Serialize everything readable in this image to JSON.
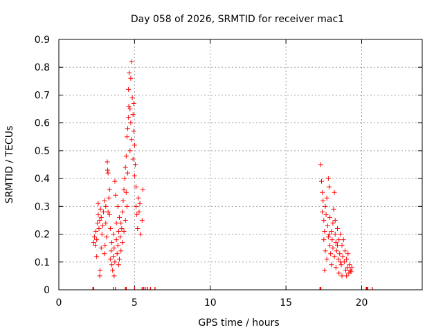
{
  "chart_data": {
    "type": "scatter",
    "title": "Day 058 of 2026, SRMTID for receiver mac1",
    "xlabel": "GPS time / hours",
    "ylabel": "SRMTID / TECUs",
    "xlim": [
      0,
      24
    ],
    "ylim": [
      0,
      0.9
    ],
    "xticks": [
      "0",
      "5",
      "10",
      "15",
      "20"
    ],
    "yticks": [
      "0",
      "0.1",
      "0.2",
      "0.3",
      "0.4",
      "0.5",
      "0.6",
      "0.7",
      "0.8",
      "0.9"
    ],
    "grid": true,
    "marker": "+",
    "color": "#ff0000",
    "series": [
      {
        "name": "SRMTID",
        "points": [
          [
            2.3,
            0.17
          ],
          [
            2.35,
            0.19
          ],
          [
            2.4,
            0.16
          ],
          [
            2.45,
            0.21
          ],
          [
            2.5,
            0.18
          ],
          [
            2.55,
            0.24
          ],
          [
            2.6,
            0.27
          ],
          [
            2.6,
            0.31
          ],
          [
            2.65,
            0.22
          ],
          [
            2.7,
            0.25
          ],
          [
            2.7,
            0.05
          ],
          [
            2.72,
            0.07
          ],
          [
            2.75,
            0.29
          ],
          [
            2.8,
            0.26
          ],
          [
            2.85,
            0.2
          ],
          [
            2.9,
            0.23
          ],
          [
            2.95,
            0.28
          ],
          [
            3.0,
            0.32
          ],
          [
            3.0,
            0.13
          ],
          [
            3.05,
            0.16
          ],
          [
            3.1,
            0.24
          ],
          [
            3.1,
            0.3
          ],
          [
            3.15,
            0.19
          ],
          [
            3.2,
            0.46
          ],
          [
            3.22,
            0.43
          ],
          [
            3.25,
            0.42
          ],
          [
            3.3,
            0.33
          ],
          [
            3.35,
            0.36
          ],
          [
            3.35,
            0.27
          ],
          [
            3.4,
            0.22
          ],
          [
            3.4,
            0.11
          ],
          [
            3.45,
            0.14
          ],
          [
            3.5,
            0.09
          ],
          [
            3.5,
            0.17
          ],
          [
            3.55,
            0.07
          ],
          [
            3.6,
            0.12
          ],
          [
            3.6,
            0.2
          ],
          [
            3.65,
            0.15
          ],
          [
            3.7,
            0.1
          ],
          [
            3.7,
            0.39
          ],
          [
            3.75,
            0.34
          ],
          [
            3.8,
            0.18
          ],
          [
            3.8,
            0.24
          ],
          [
            3.85,
            0.13
          ],
          [
            3.9,
            0.16
          ],
          [
            3.9,
            0.3
          ],
          [
            3.95,
            0.21
          ],
          [
            4.0,
            0.26
          ],
          [
            4.0,
            0.11
          ],
          [
            4.05,
            0.19
          ],
          [
            4.1,
            0.24
          ],
          [
            4.1,
            0.14
          ],
          [
            4.15,
            0.22
          ],
          [
            4.2,
            0.28
          ],
          [
            4.2,
            0.17
          ],
          [
            4.25,
            0.32
          ],
          [
            4.3,
            0.36
          ],
          [
            4.3,
            0.21
          ],
          [
            4.35,
            0.4
          ],
          [
            4.4,
            0.44
          ],
          [
            4.4,
            0.25
          ],
          [
            4.45,
            0.48
          ],
          [
            4.5,
            0.55
          ],
          [
            4.5,
            0.3
          ],
          [
            4.55,
            0.58
          ],
          [
            4.6,
            0.62
          ],
          [
            4.6,
            0.72
          ],
          [
            4.62,
            0.66
          ],
          [
            4.65,
            0.78
          ],
          [
            4.7,
            0.65
          ],
          [
            4.7,
            0.5
          ],
          [
            4.75,
            0.6
          ],
          [
            4.8,
            0.82
          ],
          [
            4.8,
            0.54
          ],
          [
            4.85,
            0.69
          ],
          [
            4.9,
            0.47
          ],
          [
            4.9,
            0.63
          ],
          [
            4.95,
            0.57
          ],
          [
            5.0,
            0.41
          ],
          [
            5.0,
            0.52
          ],
          [
            5.05,
            0.45
          ],
          [
            5.1,
            0.37
          ],
          [
            5.1,
            0.3
          ],
          [
            5.15,
            0.27
          ],
          [
            5.2,
            0.22
          ],
          [
            5.25,
            0.33
          ],
          [
            5.3,
            0.28
          ],
          [
            5.35,
            0.31
          ],
          [
            5.4,
            0.2
          ],
          [
            5.5,
            0.25
          ],
          [
            5.55,
            0.36
          ],
          [
            2.5,
            0.12
          ],
          [
            2.8,
            0.15
          ],
          [
            3.25,
            0.28
          ],
          [
            3.65,
            0.05
          ],
          [
            4.45,
            0.35
          ],
          [
            4.95,
            0.67
          ],
          [
            4.75,
            0.76
          ],
          [
            4.55,
            0.42
          ],
          [
            3.95,
            0.09
          ],
          [
            17.3,
            0.45
          ],
          [
            17.35,
            0.39
          ],
          [
            17.4,
            0.35
          ],
          [
            17.4,
            0.28
          ],
          [
            17.45,
            0.32
          ],
          [
            17.5,
            0.25
          ],
          [
            17.5,
            0.18
          ],
          [
            17.55,
            0.21
          ],
          [
            17.6,
            0.3
          ],
          [
            17.6,
            0.14
          ],
          [
            17.65,
            0.27
          ],
          [
            17.7,
            0.33
          ],
          [
            17.7,
            0.11
          ],
          [
            17.75,
            0.23
          ],
          [
            17.8,
            0.19
          ],
          [
            17.8,
            0.4
          ],
          [
            17.85,
            0.37
          ],
          [
            17.9,
            0.16
          ],
          [
            17.9,
            0.26
          ],
          [
            17.95,
            0.13
          ],
          [
            18.0,
            0.21
          ],
          [
            18.0,
            0.09
          ],
          [
            18.05,
            0.18
          ],
          [
            18.1,
            0.24
          ],
          [
            18.1,
            0.15
          ],
          [
            18.15,
            0.29
          ],
          [
            18.2,
            0.12
          ],
          [
            18.2,
            0.35
          ],
          [
            18.25,
            0.2
          ],
          [
            18.3,
            0.17
          ],
          [
            18.3,
            0.08
          ],
          [
            18.35,
            0.14
          ],
          [
            18.4,
            0.22
          ],
          [
            18.45,
            0.11
          ],
          [
            18.5,
            0.18
          ],
          [
            18.5,
            0.06
          ],
          [
            18.55,
            0.13
          ],
          [
            18.6,
            0.2
          ],
          [
            18.65,
            0.09
          ],
          [
            18.7,
            0.16
          ],
          [
            18.7,
            0.05
          ],
          [
            18.75,
            0.12
          ],
          [
            18.8,
            0.18
          ],
          [
            18.85,
            0.1
          ],
          [
            18.9,
            0.14
          ],
          [
            18.95,
            0.07
          ],
          [
            19.0,
            0.11
          ],
          [
            19.05,
            0.08
          ],
          [
            19.1,
            0.13
          ],
          [
            19.15,
            0.06
          ],
          [
            19.2,
            0.09
          ],
          [
            19.25,
            0.07
          ],
          [
            19.3,
            0.065
          ],
          [
            19.35,
            0.08
          ],
          [
            17.55,
            0.07
          ],
          [
            18.25,
            0.25
          ],
          [
            18.6,
            0.1
          ],
          [
            19.0,
            0.05
          ],
          [
            17.85,
            0.2
          ],
          [
            18.4,
            0.16
          ]
        ]
      }
    ],
    "rug_x": [
      2.25,
      2.3,
      3.6,
      3.75,
      4.4,
      4.45,
      5.0,
      5.5,
      5.6,
      5.7,
      5.85,
      6.05,
      6.35,
      17.25,
      17.3,
      20.3,
      20.35,
      20.4,
      20.7
    ]
  }
}
